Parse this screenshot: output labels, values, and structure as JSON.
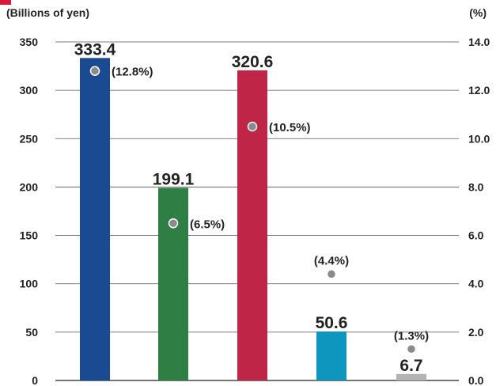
{
  "header": {
    "left_unit": "(Billions of yen)",
    "right_unit": "(%)"
  },
  "colors": {
    "accent": "#d7193a",
    "bars": [
      "#1a4a92",
      "#2f7f45",
      "#bf2546",
      "#0f96bf",
      "#b3b3b3"
    ],
    "marker": "#8a8a8a",
    "grid": "#555555"
  },
  "chart_data": {
    "type": "bar",
    "categories": [
      "",
      "",
      "",
      "",
      ""
    ],
    "values": [
      333.4,
      199.1,
      320.6,
      50.6,
      6.7
    ],
    "value_labels": [
      "333.4",
      "199.1",
      "320.6",
      "50.6",
      "6.7"
    ],
    "ylim": [
      0,
      350
    ],
    "yticks": [
      "0",
      "50",
      "100",
      "150",
      "200",
      "250",
      "300",
      "350"
    ],
    "y2lim": [
      0,
      14
    ],
    "y2ticks": [
      "0.0",
      "2.0",
      "4.0",
      "6.0",
      "8.0",
      "10.0",
      "12.0",
      "14.0"
    ],
    "ratios": [
      12.8,
      6.5,
      10.5,
      4.4,
      1.3
    ],
    "ratio_labels": [
      "(12.8%)",
      "(6.5%)",
      "(10.5%)",
      "(4.4%)",
      "(1.3%)"
    ],
    "ylabel": "(Billions of yen)",
    "y2label": "(%)",
    "grid": true
  }
}
